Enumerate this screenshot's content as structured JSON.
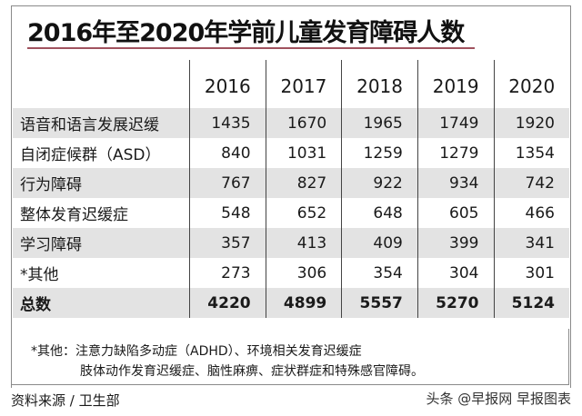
{
  "chart_data": {
    "type": "table",
    "title": "2016年至2020年学前儿童发育障碍人数",
    "columns": [
      "2016",
      "2017",
      "2018",
      "2019",
      "2020"
    ],
    "rows": [
      {
        "label": "语音和语言发展迟缓",
        "values": [
          1435,
          1670,
          1965,
          1749,
          1920
        ]
      },
      {
        "label": "自闭症候群（ASD）",
        "values": [
          840,
          1031,
          1259,
          1279,
          1354
        ]
      },
      {
        "label": "行为障碍",
        "values": [
          767,
          827,
          922,
          934,
          742
        ]
      },
      {
        "label": "整体发育迟缓症",
        "values": [
          548,
          652,
          648,
          605,
          466
        ]
      },
      {
        "label": "学习障碍",
        "values": [
          357,
          413,
          409,
          399,
          341
        ]
      },
      {
        "label": "*其他",
        "values": [
          273,
          306,
          354,
          304,
          301
        ]
      },
      {
        "label": "总数",
        "values": [
          4220,
          4899,
          5557,
          5270,
          5124
        ]
      }
    ],
    "accent_color": "#a0525e",
    "stripe_color": "#e3e3e3"
  },
  "note": {
    "line1": "*其他：注意力缺陷多动症（ADHD）、环境相关发育迟缓症",
    "line2": "肢体动作发育迟缓症、脑性麻痹、症状群症和特殊感官障碍。"
  },
  "source": "资料来源 / 卫生部",
  "credit": "头条 @早报网 早报图表"
}
